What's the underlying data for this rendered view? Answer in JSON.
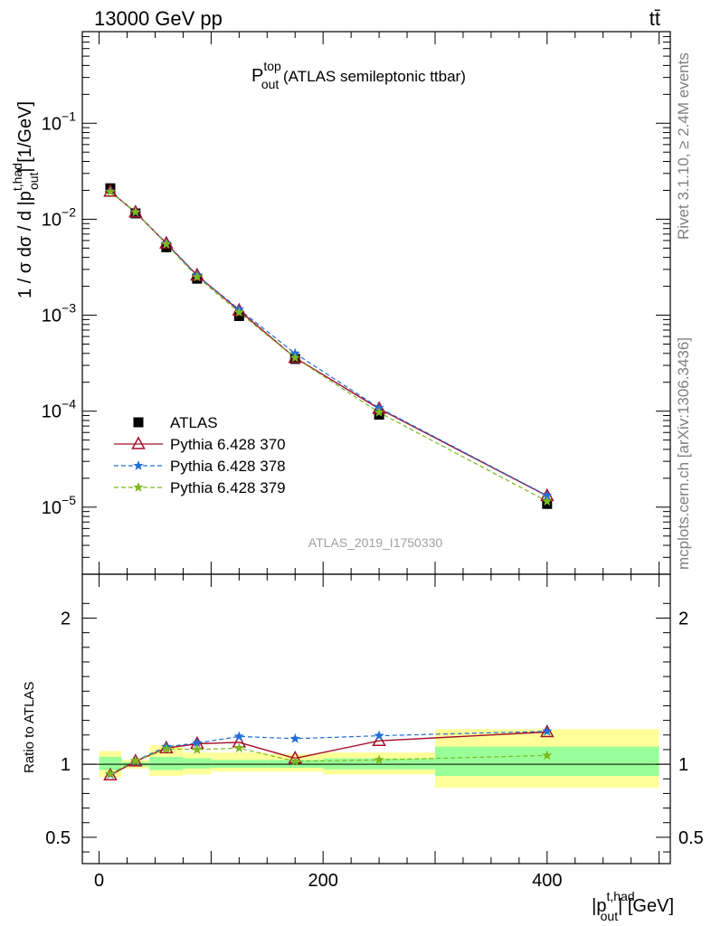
{
  "header": {
    "energy_label": "13000 GeV pp",
    "process_label": "tt̄"
  },
  "side_text": {
    "rivet": "Rivet 3.1.10, ≥ 2.4M events",
    "mcplots": "mcplots.cern.ch [arXiv:1306.3436]"
  },
  "chart_data": [
    {
      "type": "line",
      "panel": "main",
      "title": {
        "main": "P",
        "sup": "top",
        "sub": "out",
        "rest": " (ATLAS semileptonic ttbar)"
      },
      "watermark": "ATLAS_2019_I1750330",
      "ylabel": {
        "prefix": "1 / σ dσ / d |p",
        "sup": "t,had",
        "sub": "out",
        "suffix": "| [1/GeV]"
      },
      "yscale": "log",
      "ylim": [
        2e-06,
        0.9
      ],
      "xlim": [
        -15,
        510
      ],
      "y_tick_labels": [
        "10^-5",
        "10^-4",
        "10^-3",
        "10^-2",
        "10^-1"
      ],
      "y_tick_values": [
        1e-05,
        0.0001,
        0.001,
        0.01,
        0.1
      ],
      "legend_position": "bottom-left",
      "x": [
        10,
        32.5,
        60,
        87.5,
        125,
        175,
        250,
        400
      ],
      "series": [
        {
          "name": "ATLAS",
          "marker": "square",
          "color": "#000000",
          "values": [
            0.021,
            0.0115,
            0.0051,
            0.0024,
            0.00098,
            0.00035,
            9.2e-05,
            1.08e-05
          ]
        },
        {
          "name": "Pythia 6.428 370",
          "marker": "open-triangle",
          "color": "#a50f2c",
          "values": [
            0.0194,
            0.0118,
            0.0056,
            0.0026,
            0.00112,
            0.00036,
            0.000106,
            1.31e-05
          ]
        },
        {
          "name": "Pythia 6.428 378",
          "marker": "star",
          "color": "#1f6fd6",
          "values": [
            0.0195,
            0.0118,
            0.0056,
            0.0026,
            0.00115,
            0.0004,
            0.000108,
            1.32e-05
          ]
        },
        {
          "name": "Pythia 6.428 379",
          "marker": "star",
          "color": "#7db81e",
          "values": [
            0.0193,
            0.0119,
            0.0055,
            0.0025,
            0.00107,
            0.00036,
            9.7e-05,
            1.15e-05
          ]
        }
      ]
    },
    {
      "type": "line",
      "panel": "ratio",
      "ylabel": "Ratio to ATLAS",
      "ylim": [
        0.32,
        2.3
      ],
      "y_tick_labels": [
        "0.5",
        "1",
        "2"
      ],
      "y_tick_values": [
        0.5,
        1,
        2
      ],
      "x_tick_labels": [
        "0",
        "200",
        "400"
      ],
      "x_tick_values": [
        0,
        200,
        400
      ],
      "xlabel": {
        "prefix": "|p",
        "sup": "t,had",
        "sub": "out",
        "suffix": "| [GeV]"
      },
      "bands": [
        {
          "x0": 0,
          "x1": 20,
          "y_low": 0.91,
          "y_high": 1.09,
          "y2_low": 0.96,
          "y2_high": 1.05
        },
        {
          "x0": 20,
          "x1": 45,
          "y_low": 0.97,
          "y_high": 1.03,
          "y2_low": 0.985,
          "y2_high": 1.015
        },
        {
          "x0": 45,
          "x1": 75,
          "y_low": 0.92,
          "y_high": 1.13,
          "y2_low": 0.96,
          "y2_high": 1.05
        },
        {
          "x0": 75,
          "x1": 100,
          "y_low": 0.93,
          "y_high": 1.08,
          "y2_low": 0.97,
          "y2_high": 1.04
        },
        {
          "x0": 100,
          "x1": 150,
          "y_low": 0.95,
          "y_high": 1.08,
          "y2_low": 0.975,
          "y2_high": 1.03
        },
        {
          "x0": 150,
          "x1": 200,
          "y_low": 0.95,
          "y_high": 1.07,
          "y2_low": 0.975,
          "y2_high": 1.03
        },
        {
          "x0": 200,
          "x1": 300,
          "y_low": 0.93,
          "y_high": 1.08,
          "y2_low": 0.965,
          "y2_high": 1.04
        },
        {
          "x0": 300,
          "x1": 500,
          "y_low": 0.84,
          "y_high": 1.24,
          "y2_low": 0.92,
          "y2_high": 1.12
        }
      ],
      "x": [
        10,
        32.5,
        60,
        87.5,
        125,
        175,
        250,
        400
      ],
      "series": [
        {
          "name": "Pythia 6.428 370",
          "marker": "open-triangle",
          "color": "#a50f2c",
          "values": [
            0.925,
            1.02,
            1.11,
            1.14,
            1.15,
            1.04,
            1.16,
            1.22
          ]
        },
        {
          "name": "Pythia 6.428 378",
          "marker": "star",
          "color": "#1f6fd6",
          "values": [
            0.93,
            1.025,
            1.12,
            1.145,
            1.19,
            1.175,
            1.195,
            1.225
          ]
        },
        {
          "name": "Pythia 6.428 379",
          "marker": "star",
          "color": "#7db81e",
          "values": [
            0.935,
            1.025,
            1.105,
            1.1,
            1.11,
            1.02,
            1.03,
            1.06
          ]
        }
      ]
    }
  ]
}
